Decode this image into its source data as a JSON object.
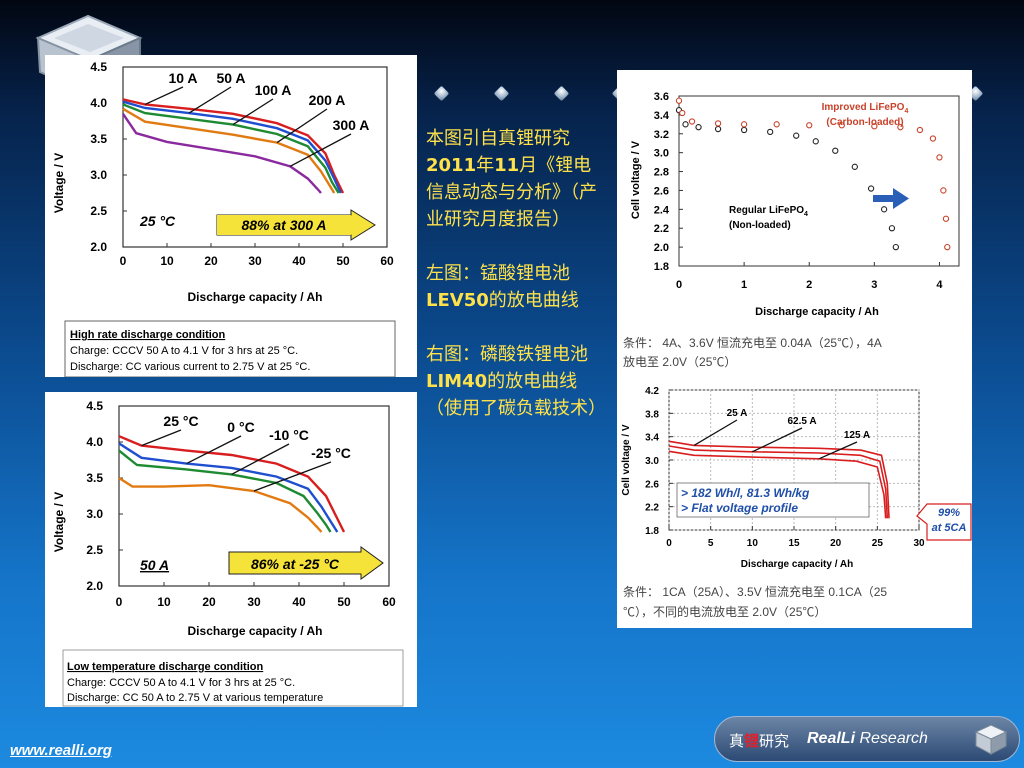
{
  "footer": {
    "website": "www.realli.org"
  },
  "brand": {
    "cn_part1": "真",
    "cn_red": "锂",
    "cn_part2": "研究",
    "en_bold": "RealLi",
    "en_rest": " Research"
  },
  "middle_text": {
    "p1_a": "本图引自真锂研究",
    "p1_b": "2011",
    "p1_c": "年",
    "p1_d": "11",
    "p1_e": "月《锂电信息动态与分析》（产业研究月度报告）",
    "p2_a": "左图：锰酸锂电池",
    "p2_b": "LEV50",
    "p2_c": "的放电曲线",
    "p3_a": "右图：磷酸铁锂电池",
    "p3_b": "LIM40",
    "p3_c": "的放电曲线（使用了碳负载技术）"
  },
  "chart_data": [
    {
      "type": "line",
      "xlabel": "Discharge capacity / Ah",
      "ylabel": "Voltage / V",
      "xticks": [
        "0",
        "10",
        "20",
        "30",
        "40",
        "50",
        "60"
      ],
      "yticks": [
        "2.0",
        "2.5",
        "3.0",
        "3.5",
        "4.0",
        "4.5"
      ],
      "xlim": [
        0,
        60
      ],
      "ylim": [
        2.0,
        4.5
      ],
      "series": [
        {
          "name": "10 A",
          "color": "#d81e1e",
          "points": [
            [
              0,
              4.05
            ],
            [
              5,
              3.98
            ],
            [
              15,
              3.92
            ],
            [
              25,
              3.85
            ],
            [
              35,
              3.72
            ],
            [
              42,
              3.55
            ],
            [
              46,
              3.3
            ],
            [
              48,
              3.0
            ],
            [
              50,
              2.75
            ]
          ]
        },
        {
          "name": "50 A",
          "color": "#1f4fd0",
          "points": [
            [
              0,
              4.02
            ],
            [
              5,
              3.93
            ],
            [
              15,
              3.86
            ],
            [
              25,
              3.78
            ],
            [
              35,
              3.65
            ],
            [
              42,
              3.48
            ],
            [
              46,
              3.2
            ],
            [
              48,
              2.95
            ],
            [
              49.5,
              2.75
            ]
          ]
        },
        {
          "name": "100 A",
          "color": "#1e8a32",
          "points": [
            [
              0,
              3.98
            ],
            [
              5,
              3.86
            ],
            [
              15,
              3.78
            ],
            [
              25,
              3.7
            ],
            [
              35,
              3.57
            ],
            [
              42,
              3.4
            ],
            [
              46,
              3.1
            ],
            [
              47.5,
              2.9
            ],
            [
              49,
              2.75
            ]
          ]
        },
        {
          "name": "200 A",
          "color": "#e27a12",
          "points": [
            [
              0,
              3.92
            ],
            [
              5,
              3.74
            ],
            [
              15,
              3.65
            ],
            [
              25,
              3.56
            ],
            [
              35,
              3.45
            ],
            [
              42,
              3.28
            ],
            [
              45,
              3.05
            ],
            [
              47,
              2.85
            ],
            [
              48,
              2.75
            ]
          ]
        },
        {
          "name": "300 A",
          "color": "#8a2a9e",
          "points": [
            [
              0,
              3.85
            ],
            [
              3,
              3.58
            ],
            [
              10,
              3.46
            ],
            [
              20,
              3.36
            ],
            [
              30,
              3.26
            ],
            [
              38,
              3.12
            ],
            [
              42,
              2.95
            ],
            [
              44,
              2.82
            ],
            [
              45,
              2.75
            ]
          ]
        }
      ],
      "annotations": [
        "25 °C",
        "88% at 300 A"
      ],
      "condition": {
        "title": "High rate discharge condition",
        "charge": "Charge: CCCV 50 A to 4.1 V for 3 hrs at 25 °C.",
        "discharge": "Discharge: CC various current to 2.75 V at 25 °C."
      }
    },
    {
      "type": "line",
      "xlabel": "Discharge capacity / Ah",
      "ylabel": "Voltage / V",
      "xticks": [
        "0",
        "10",
        "20",
        "30",
        "40",
        "50",
        "60"
      ],
      "yticks": [
        "2.0",
        "2.5",
        "3.0",
        "3.5",
        "4.0",
        "4.5"
      ],
      "xlim": [
        0,
        60
      ],
      "ylim": [
        2.0,
        4.5
      ],
      "series": [
        {
          "name": "25 °C",
          "color": "#d81e1e",
          "points": [
            [
              0,
              4.08
            ],
            [
              5,
              3.95
            ],
            [
              15,
              3.88
            ],
            [
              25,
              3.82
            ],
            [
              35,
              3.7
            ],
            [
              42,
              3.52
            ],
            [
              46,
              3.25
            ],
            [
              48,
              3.0
            ],
            [
              50,
              2.75
            ]
          ]
        },
        {
          "name": "0 °C",
          "color": "#1f4fd0",
          "points": [
            [
              0,
              3.98
            ],
            [
              5,
              3.78
            ],
            [
              15,
              3.7
            ],
            [
              25,
              3.64
            ],
            [
              35,
              3.52
            ],
            [
              42,
              3.35
            ],
            [
              45,
              3.1
            ],
            [
              47,
              2.9
            ],
            [
              48.5,
              2.75
            ]
          ]
        },
        {
          "name": "-10 °C",
          "color": "#1e8a32",
          "points": [
            [
              0,
              3.88
            ],
            [
              4,
              3.68
            ],
            [
              15,
              3.62
            ],
            [
              25,
              3.55
            ],
            [
              35,
              3.43
            ],
            [
              41,
              3.25
            ],
            [
              44,
              3.02
            ],
            [
              46,
              2.85
            ],
            [
              47,
              2.75
            ]
          ]
        },
        {
          "name": "-25 °C",
          "color": "#e27a12",
          "points": [
            [
              0,
              3.5
            ],
            [
              3,
              3.38
            ],
            [
              10,
              3.38
            ],
            [
              20,
              3.4
            ],
            [
              30,
              3.32
            ],
            [
              38,
              3.15
            ],
            [
              42,
              2.95
            ],
            [
              44,
              2.82
            ],
            [
              45,
              2.75
            ]
          ]
        }
      ],
      "annotations": [
        "50 A",
        "86% at -25 °C"
      ],
      "condition": {
        "title": "Low temperature discharge condition",
        "charge": "Charge: CCCV 50 A to 4.1 V for 3 hrs at 25 °C.",
        "discharge": "Discharge: CC 50 A to 2.75 V at various temperature"
      }
    },
    {
      "type": "scatter",
      "xlabel": "Discharge capacity / Ah",
      "ylabel": "Cell voltage / V",
      "xticks": [
        "0",
        "1",
        "2",
        "3",
        "4"
      ],
      "yticks": [
        "1.8",
        "2.0",
        "2.2",
        "2.4",
        "2.6",
        "2.8",
        "3.0",
        "3.2",
        "3.4",
        "3.6"
      ],
      "xlim": [
        0,
        4.3
      ],
      "ylim": [
        1.8,
        3.6
      ],
      "series": [
        {
          "name": "Regular LiFePO4 (Non-loaded)",
          "color": "#222222",
          "points": [
            [
              0,
              3.45
            ],
            [
              0.1,
              3.3
            ],
            [
              0.3,
              3.27
            ],
            [
              0.6,
              3.25
            ],
            [
              1.0,
              3.24
            ],
            [
              1.4,
              3.22
            ],
            [
              1.8,
              3.18
            ],
            [
              2.1,
              3.12
            ],
            [
              2.4,
              3.02
            ],
            [
              2.7,
              2.85
            ],
            [
              2.95,
              2.62
            ],
            [
              3.15,
              2.4
            ],
            [
              3.27,
              2.2
            ],
            [
              3.33,
              2.0
            ]
          ]
        },
        {
          "name": "Improved LiFePO4 (Carbon-loaded)",
          "color": "#c8422a",
          "points": [
            [
              0,
              3.55
            ],
            [
              0.05,
              3.42
            ],
            [
              0.2,
              3.33
            ],
            [
              0.6,
              3.31
            ],
            [
              1.0,
              3.3
            ],
            [
              1.5,
              3.3
            ],
            [
              2.0,
              3.29
            ],
            [
              2.5,
              3.29
            ],
            [
              3.0,
              3.28
            ],
            [
              3.4,
              3.27
            ],
            [
              3.7,
              3.24
            ],
            [
              3.9,
              3.15
            ],
            [
              4.0,
              2.95
            ],
            [
              4.06,
              2.6
            ],
            [
              4.1,
              2.3
            ],
            [
              4.12,
              2.0
            ]
          ]
        }
      ],
      "labels": {
        "improved_line1": "Improved LiFePO",
        "improved_line2": "(Carbon-loaded)",
        "regular_line1": "Regular LiFePO",
        "regular_line2": "(Non-loaded)",
        "sub": "4"
      },
      "condition": {
        "line1": "条件：  4A、3.6V 恒流充电至 0.04A（25℃），4A",
        "line2": "放电至 2.0V（25℃）"
      }
    },
    {
      "type": "line",
      "xlabel": "Discharge capacity / Ah",
      "ylabel": "Cell voltage / V",
      "xticks": [
        "0",
        "5",
        "10",
        "15",
        "20",
        "25",
        "30"
      ],
      "yticks": [
        "1.8",
        "2.2",
        "2.6",
        "3.0",
        "3.4",
        "3.8",
        "4.2"
      ],
      "xlim": [
        0,
        30
      ],
      "ylim": [
        1.8,
        4.2
      ],
      "series": [
        {
          "name": "25 A",
          "color": "#d81e1e",
          "points": [
            [
              0,
              3.32
            ],
            [
              3,
              3.25
            ],
            [
              10,
              3.22
            ],
            [
              18,
              3.2
            ],
            [
              23,
              3.17
            ],
            [
              25.5,
              3.08
            ],
            [
              26.2,
              2.6
            ],
            [
              26.4,
              2.0
            ]
          ]
        },
        {
          "name": "62.5 A",
          "color": "#d81e1e",
          "points": [
            [
              0,
              3.24
            ],
            [
              3,
              3.17
            ],
            [
              10,
              3.14
            ],
            [
              18,
              3.12
            ],
            [
              23,
              3.08
            ],
            [
              25.3,
              2.98
            ],
            [
              26,
              2.5
            ],
            [
              26.2,
              2.0
            ]
          ]
        },
        {
          "name": "125 A",
          "color": "#d81e1e",
          "points": [
            [
              0,
              3.15
            ],
            [
              3,
              3.08
            ],
            [
              10,
              3.05
            ],
            [
              18,
              3.02
            ],
            [
              22.5,
              2.98
            ],
            [
              25,
              2.88
            ],
            [
              25.8,
              2.4
            ],
            [
              26,
              2.0
            ]
          ]
        }
      ],
      "annotations": [
        "> 182 Wh/l, 81.3 Wh/kg",
        "> Flat voltage profile",
        "99%",
        "at 5CA"
      ],
      "condition": {
        "line1": "条件：  1CA（25A）、3.5V 恒流充电至 0.1CA（25",
        "line2": "℃），不同的电流放电至 2.0V（25℃）"
      }
    }
  ]
}
